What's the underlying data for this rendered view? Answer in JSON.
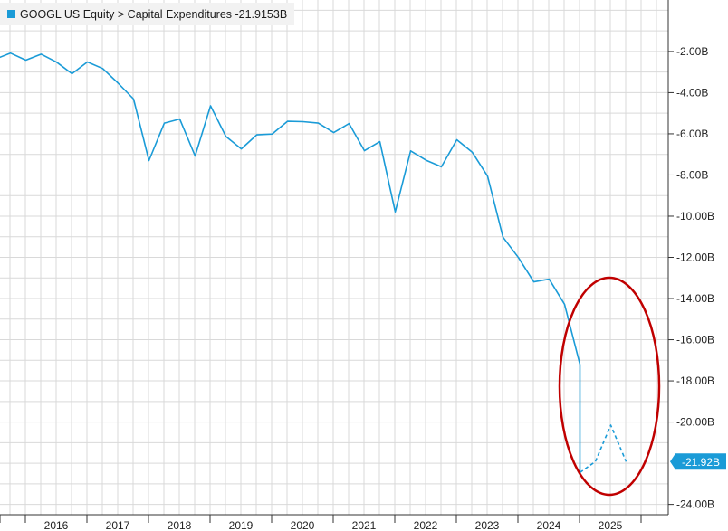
{
  "legend": {
    "text": "GOOGL US Equity > Capital Expenditures -21.9153B",
    "color": "#1a9bd7"
  },
  "last_value_badge": "-21.92B",
  "highlight_color": "#c00000",
  "chart_data": {
    "type": "line",
    "title": "",
    "xlabel": "",
    "ylabel": "",
    "ylim": [
      -24.5,
      0.5
    ],
    "yticks": [
      -2,
      -4,
      -6,
      -8,
      -10,
      -12,
      -14,
      -16,
      -18,
      -20,
      -24
    ],
    "ytick_labels": [
      "-2.00B",
      "-4.00B",
      "-6.00B",
      "-8.00B",
      "-10.00B",
      "-12.00B",
      "-14.00B",
      "-16.00B",
      "-18.00B",
      "-20.00B",
      "-24.00B"
    ],
    "xtick_labels": [
      "2016",
      "2017",
      "2018",
      "2019",
      "2020",
      "2021",
      "2022",
      "2023",
      "2024",
      "2025"
    ],
    "grid": true,
    "legend_position": "top-left",
    "series": [
      {
        "name": "GOOGL US Equity > Capital Expenditures",
        "style": "solid",
        "x": [
          "2015Q3",
          "2015Q4",
          "2016Q1",
          "2016Q2",
          "2016Q3",
          "2016Q4",
          "2017Q1",
          "2017Q2",
          "2017Q3",
          "2017Q4",
          "2018Q1",
          "2018Q2",
          "2018Q3",
          "2018Q4",
          "2019Q1",
          "2019Q2",
          "2019Q3",
          "2019Q4",
          "2020Q1",
          "2020Q2",
          "2020Q3",
          "2020Q4",
          "2021Q1",
          "2021Q2",
          "2021Q3",
          "2021Q4",
          "2022Q1",
          "2022Q2",
          "2022Q3",
          "2022Q4",
          "2023Q1",
          "2023Q2",
          "2023Q3",
          "2023Q4",
          "2024Q1",
          "2024Q2",
          "2024Q3",
          "2024Q4",
          "2025Q1"
        ],
        "values": [
          -2.38,
          -2.08,
          -2.42,
          -2.13,
          -2.52,
          -3.08,
          -2.51,
          -2.83,
          -3.54,
          -4.31,
          -7.3,
          -5.48,
          -5.28,
          -7.08,
          -4.64,
          -6.13,
          -6.73,
          -6.05,
          -6.01,
          -5.39,
          -5.41,
          -5.48,
          -5.94,
          -5.5,
          -6.82,
          -6.38,
          -9.79,
          -6.83,
          -7.28,
          -7.6,
          -6.29,
          -6.89,
          -8.06,
          -11.02,
          -12.01,
          -13.19,
          -13.06,
          -14.28,
          -17.2
        ]
      },
      {
        "name": "",
        "style": "dashed",
        "x": [
          "2025Q1",
          "2025Q2",
          "2025Q3",
          "2025Q4"
        ],
        "values": [
          -22.45,
          -21.92,
          -20.15,
          -21.92
        ]
      }
    ]
  }
}
